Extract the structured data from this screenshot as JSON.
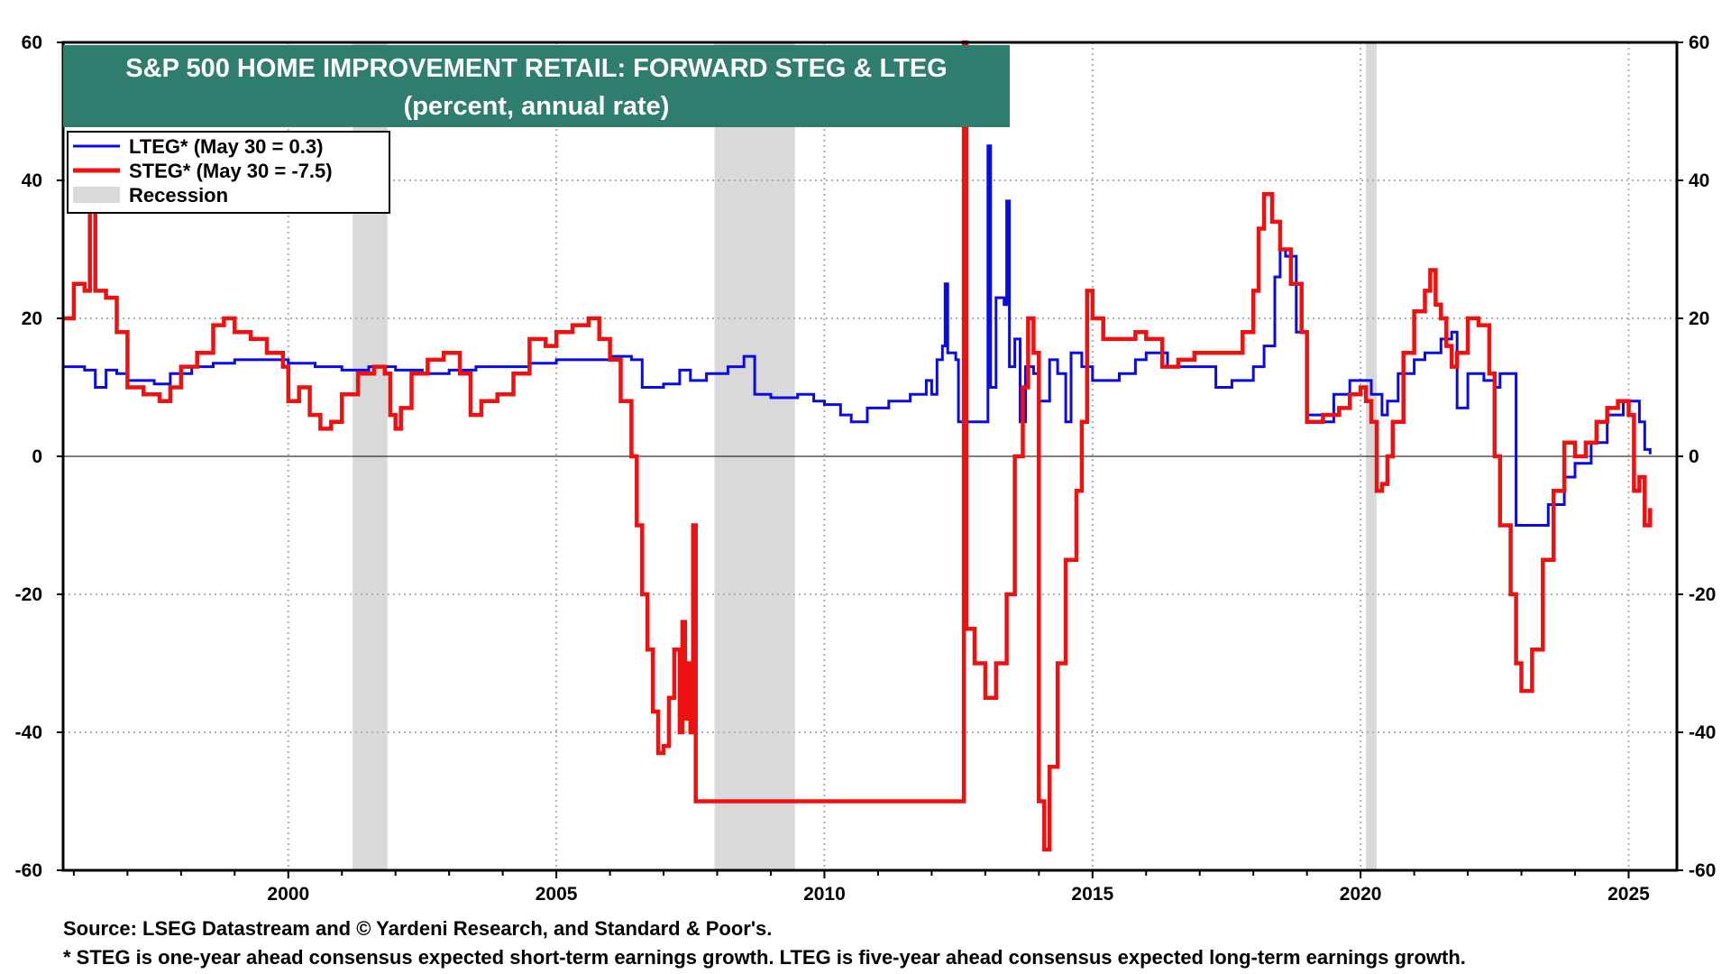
{
  "chart_data": {
    "type": "line",
    "title": "S&P 500 HOME IMPROVEMENT RETAIL: FORWARD STEG & LTEG",
    "subtitle": "(percent, annual rate)",
    "xlim": [
      1995.8,
      2025.9
    ],
    "ylim": [
      -60,
      60
    ],
    "x_ticks": [
      2000,
      2005,
      2010,
      2015,
      2020,
      2025
    ],
    "y_ticks": [
      -60,
      -40,
      -20,
      0,
      20,
      40,
      60
    ],
    "colors": {
      "lteg": "#0a0ae6",
      "steg": "#ee1111",
      "recession": "#d9d9d9",
      "title_bg": "#2e7d6e"
    },
    "recessions": [
      [
        2001.2,
        2001.85
      ],
      [
        2007.95,
        2009.45
      ],
      [
        2020.1,
        2020.3
      ]
    ],
    "legend": [
      {
        "label": "LTEG* (May 30 = 0.3)",
        "kind": "line",
        "color": "#0a0ae6"
      },
      {
        "label": "STEG* (May 30 = -7.5)",
        "kind": "line",
        "color": "#ee1111"
      },
      {
        "label": "Recession",
        "kind": "box",
        "color": "#d9d9d9"
      }
    ],
    "series": [
      {
        "name": "LTEG",
        "color": "#0a0ae6",
        "points": [
          [
            1995.8,
            13
          ],
          [
            1996.2,
            12.5
          ],
          [
            1996.4,
            10
          ],
          [
            1996.6,
            12.5
          ],
          [
            1996.8,
            12
          ],
          [
            1997.0,
            11
          ],
          [
            1997.3,
            11
          ],
          [
            1997.5,
            10.5
          ],
          [
            1997.8,
            12
          ],
          [
            1998.2,
            13
          ],
          [
            1998.6,
            13.5
          ],
          [
            1999.0,
            14
          ],
          [
            1999.5,
            14
          ],
          [
            2000.0,
            13.5
          ],
          [
            2000.5,
            13
          ],
          [
            2001.0,
            12.5
          ],
          [
            2001.5,
            13
          ],
          [
            2002.0,
            12.5
          ],
          [
            2002.5,
            12
          ],
          [
            2003.0,
            12.5
          ],
          [
            2003.5,
            13
          ],
          [
            2004.0,
            13
          ],
          [
            2004.5,
            13.5
          ],
          [
            2005.0,
            14
          ],
          [
            2005.5,
            14
          ],
          [
            2006.0,
            14.5
          ],
          [
            2006.4,
            14
          ],
          [
            2006.6,
            10
          ],
          [
            2007.0,
            10.5
          ],
          [
            2007.3,
            12.5
          ],
          [
            2007.5,
            11
          ],
          [
            2007.8,
            12
          ],
          [
            2008.2,
            13
          ],
          [
            2008.5,
            14.5
          ],
          [
            2008.7,
            9
          ],
          [
            2009.0,
            8.5
          ],
          [
            2009.5,
            9
          ],
          [
            2009.8,
            8
          ],
          [
            2010.0,
            7.5
          ],
          [
            2010.3,
            6
          ],
          [
            2010.5,
            5
          ],
          [
            2010.8,
            7
          ],
          [
            2011.2,
            8
          ],
          [
            2011.6,
            9
          ],
          [
            2011.9,
            11
          ],
          [
            2012.0,
            9
          ],
          [
            2012.1,
            14
          ],
          [
            2012.2,
            16
          ],
          [
            2012.25,
            25
          ],
          [
            2012.3,
            15
          ],
          [
            2012.45,
            14
          ],
          [
            2012.5,
            5
          ],
          [
            2012.9,
            5
          ],
          [
            2013.0,
            5
          ],
          [
            2013.05,
            45
          ],
          [
            2013.1,
            10
          ],
          [
            2013.2,
            23
          ],
          [
            2013.35,
            22
          ],
          [
            2013.4,
            37
          ],
          [
            2013.45,
            13
          ],
          [
            2013.55,
            17
          ],
          [
            2013.65,
            5
          ],
          [
            2013.75,
            13
          ],
          [
            2013.9,
            12
          ],
          [
            2014.0,
            8
          ],
          [
            2014.2,
            14
          ],
          [
            2014.35,
            12
          ],
          [
            2014.5,
            5
          ],
          [
            2014.6,
            15
          ],
          [
            2014.8,
            13
          ],
          [
            2015.0,
            11
          ],
          [
            2015.5,
            12
          ],
          [
            2015.8,
            14
          ],
          [
            2016.0,
            15
          ],
          [
            2016.4,
            13
          ],
          [
            2016.8,
            13
          ],
          [
            2017.3,
            10
          ],
          [
            2017.6,
            11
          ],
          [
            2018.0,
            13
          ],
          [
            2018.2,
            16
          ],
          [
            2018.4,
            26
          ],
          [
            2018.5,
            30
          ],
          [
            2018.6,
            29
          ],
          [
            2018.8,
            18
          ],
          [
            2019.0,
            6
          ],
          [
            2019.3,
            5
          ],
          [
            2019.5,
            9
          ],
          [
            2019.8,
            11
          ],
          [
            2020.0,
            11
          ],
          [
            2020.2,
            9
          ],
          [
            2020.4,
            6
          ],
          [
            2020.5,
            8
          ],
          [
            2020.7,
            12
          ],
          [
            2021.0,
            14
          ],
          [
            2021.2,
            15
          ],
          [
            2021.5,
            17
          ],
          [
            2021.7,
            18
          ],
          [
            2021.8,
            7
          ],
          [
            2022.0,
            12
          ],
          [
            2022.3,
            11
          ],
          [
            2022.5,
            10
          ],
          [
            2022.6,
            12
          ],
          [
            2022.8,
            12
          ],
          [
            2022.9,
            -10
          ],
          [
            2023.2,
            -10
          ],
          [
            2023.5,
            -7
          ],
          [
            2023.8,
            -3
          ],
          [
            2024.0,
            -1
          ],
          [
            2024.3,
            2
          ],
          [
            2024.6,
            6
          ],
          [
            2024.9,
            8
          ],
          [
            2025.1,
            8
          ],
          [
            2025.2,
            5
          ],
          [
            2025.3,
            1
          ],
          [
            2025.4,
            0.3
          ]
        ]
      },
      {
        "name": "STEG",
        "color": "#ee1111",
        "points": [
          [
            1995.8,
            20
          ],
          [
            1996.0,
            25
          ],
          [
            1996.2,
            24
          ],
          [
            1996.3,
            36
          ],
          [
            1996.4,
            24
          ],
          [
            1996.6,
            23
          ],
          [
            1996.8,
            18
          ],
          [
            1997.0,
            10
          ],
          [
            1997.3,
            9
          ],
          [
            1997.6,
            8
          ],
          [
            1997.8,
            10
          ],
          [
            1998.0,
            13
          ],
          [
            1998.3,
            15
          ],
          [
            1998.6,
            19
          ],
          [
            1998.8,
            20
          ],
          [
            1999.0,
            18
          ],
          [
            1999.3,
            17
          ],
          [
            1999.6,
            15
          ],
          [
            1999.9,
            13
          ],
          [
            2000.0,
            8
          ],
          [
            2000.2,
            10
          ],
          [
            2000.4,
            6
          ],
          [
            2000.6,
            4
          ],
          [
            2000.8,
            5
          ],
          [
            2001.0,
            9
          ],
          [
            2001.3,
            12
          ],
          [
            2001.6,
            13
          ],
          [
            2001.8,
            12
          ],
          [
            2001.9,
            6
          ],
          [
            2002.0,
            4
          ],
          [
            2002.1,
            7
          ],
          [
            2002.3,
            12
          ],
          [
            2002.6,
            14
          ],
          [
            2002.9,
            15
          ],
          [
            2003.2,
            12
          ],
          [
            2003.4,
            6
          ],
          [
            2003.6,
            8
          ],
          [
            2003.9,
            9
          ],
          [
            2004.2,
            12
          ],
          [
            2004.5,
            17
          ],
          [
            2004.8,
            16
          ],
          [
            2005.0,
            18
          ],
          [
            2005.3,
            19
          ],
          [
            2005.6,
            20
          ],
          [
            2005.8,
            17
          ],
          [
            2006.0,
            14
          ],
          [
            2006.2,
            8
          ],
          [
            2006.4,
            0
          ],
          [
            2006.5,
            -10
          ],
          [
            2006.6,
            -20
          ],
          [
            2006.7,
            -28
          ],
          [
            2006.8,
            -37
          ],
          [
            2006.9,
            -43
          ],
          [
            2007.0,
            -42
          ],
          [
            2007.1,
            -35
          ],
          [
            2007.2,
            -28
          ],
          [
            2007.3,
            -40
          ],
          [
            2007.35,
            -24
          ],
          [
            2007.4,
            -38
          ],
          [
            2007.45,
            -30
          ],
          [
            2007.5,
            -40
          ],
          [
            2007.55,
            -10
          ],
          [
            2007.6,
            -50
          ],
          [
            2012.55,
            -50
          ],
          [
            2012.6,
            60
          ],
          [
            2012.65,
            -25
          ],
          [
            2012.8,
            -30
          ],
          [
            2013.0,
            -35
          ],
          [
            2013.2,
            -30
          ],
          [
            2013.4,
            -20
          ],
          [
            2013.55,
            0
          ],
          [
            2013.7,
            10
          ],
          [
            2013.8,
            20
          ],
          [
            2013.9,
            15
          ],
          [
            2014.0,
            -50
          ],
          [
            2014.1,
            -57
          ],
          [
            2014.2,
            -45
          ],
          [
            2014.35,
            -30
          ],
          [
            2014.5,
            -15
          ],
          [
            2014.7,
            -5
          ],
          [
            2014.8,
            5
          ],
          [
            2014.9,
            24
          ],
          [
            2015.0,
            20
          ],
          [
            2015.2,
            17
          ],
          [
            2015.5,
            17
          ],
          [
            2015.8,
            18
          ],
          [
            2016.0,
            17
          ],
          [
            2016.3,
            13
          ],
          [
            2016.6,
            14
          ],
          [
            2016.9,
            15
          ],
          [
            2017.2,
            15
          ],
          [
            2017.5,
            15
          ],
          [
            2017.8,
            18
          ],
          [
            2018.0,
            24
          ],
          [
            2018.1,
            33
          ],
          [
            2018.2,
            38
          ],
          [
            2018.35,
            34
          ],
          [
            2018.5,
            30
          ],
          [
            2018.7,
            25
          ],
          [
            2018.9,
            18
          ],
          [
            2019.0,
            5
          ],
          [
            2019.3,
            6
          ],
          [
            2019.6,
            7
          ],
          [
            2019.8,
            9
          ],
          [
            2020.0,
            10
          ],
          [
            2020.1,
            8
          ],
          [
            2020.2,
            5
          ],
          [
            2020.3,
            -5
          ],
          [
            2020.4,
            -4
          ],
          [
            2020.5,
            0
          ],
          [
            2020.6,
            5
          ],
          [
            2020.8,
            15
          ],
          [
            2021.0,
            21
          ],
          [
            2021.2,
            24
          ],
          [
            2021.3,
            27
          ],
          [
            2021.4,
            22
          ],
          [
            2021.5,
            20
          ],
          [
            2021.6,
            16
          ],
          [
            2021.7,
            13
          ],
          [
            2021.8,
            15
          ],
          [
            2022.0,
            20
          ],
          [
            2022.2,
            19
          ],
          [
            2022.4,
            12
          ],
          [
            2022.5,
            0
          ],
          [
            2022.6,
            -10
          ],
          [
            2022.8,
            -20
          ],
          [
            2022.9,
            -30
          ],
          [
            2023.0,
            -34
          ],
          [
            2023.2,
            -28
          ],
          [
            2023.4,
            -15
          ],
          [
            2023.6,
            -5
          ],
          [
            2023.8,
            2
          ],
          [
            2024.0,
            0
          ],
          [
            2024.2,
            2
          ],
          [
            2024.4,
            5
          ],
          [
            2024.6,
            7
          ],
          [
            2024.8,
            8
          ],
          [
            2025.0,
            6
          ],
          [
            2025.1,
            -5
          ],
          [
            2025.2,
            -3
          ],
          [
            2025.3,
            -10
          ],
          [
            2025.4,
            -7.5
          ]
        ]
      }
    ]
  },
  "footer": {
    "source": "Source: LSEG Datastream and © Yardeni Research, and Standard & Poor's.",
    "note": "* STEG is one-year ahead consensus expected short-term earnings growth. LTEG is five-year ahead consensus expected long-term earnings growth."
  }
}
